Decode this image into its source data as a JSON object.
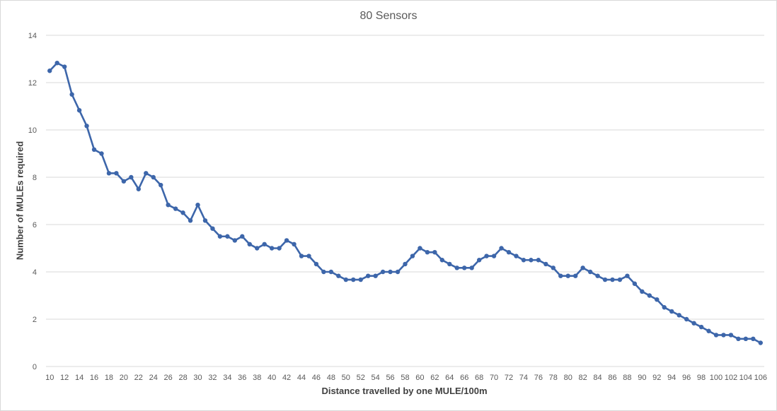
{
  "chart_data": {
    "type": "line",
    "title": "80 Sensors",
    "xlabel": "Distance travelled by one MULE/100m",
    "ylabel": "Number of MULEs required",
    "ylim": [
      0,
      14
    ],
    "yticks": [
      0,
      2,
      4,
      6,
      8,
      10,
      12,
      14
    ],
    "grid": true,
    "legend": "none",
    "colors": {
      "line": "#3d66aa",
      "grid": "#d9d9d9"
    },
    "x": [
      10,
      11,
      12,
      13,
      14,
      15,
      16,
      17,
      18,
      19,
      20,
      21,
      22,
      23,
      24,
      25,
      26,
      27,
      28,
      29,
      30,
      31,
      32,
      33,
      34,
      35,
      36,
      37,
      38,
      39,
      40,
      41,
      42,
      43,
      44,
      45,
      46,
      47,
      48,
      49,
      50,
      51,
      52,
      53,
      54,
      55,
      56,
      57,
      58,
      59,
      60,
      61,
      62,
      63,
      64,
      65,
      66,
      67,
      68,
      69,
      70,
      71,
      72,
      73,
      74,
      75,
      76,
      77,
      78,
      79,
      80,
      81,
      82,
      83,
      84,
      85,
      86,
      87,
      88,
      89,
      90,
      91,
      92,
      93,
      94,
      95,
      96,
      97,
      98,
      99,
      100,
      101,
      102,
      103,
      104,
      105,
      106
    ],
    "xtick_labels": [
      "10",
      "12",
      "14",
      "16",
      "18",
      "20",
      "22",
      "24",
      "26",
      "28",
      "30",
      "32",
      "34",
      "36",
      "38",
      "40",
      "42",
      "44",
      "46",
      "48",
      "50",
      "52",
      "54",
      "56",
      "58",
      "60",
      "62",
      "64",
      "66",
      "68",
      "70",
      "72",
      "74",
      "76",
      "78",
      "80",
      "82",
      "84",
      "86",
      "88",
      "90",
      "92",
      "94",
      "96",
      "98",
      "100",
      "102",
      "104",
      "106"
    ],
    "series": [
      {
        "values": [
          12.5,
          12.83,
          12.67,
          11.5,
          10.83,
          10.17,
          9.17,
          9.0,
          8.17,
          8.17,
          7.83,
          8.0,
          7.5,
          8.17,
          8.0,
          7.67,
          6.83,
          6.67,
          6.5,
          6.17,
          6.83,
          6.17,
          5.83,
          5.5,
          5.5,
          5.33,
          5.5,
          5.17,
          5.0,
          5.17,
          5.0,
          5.0,
          5.33,
          5.17,
          4.67,
          4.67,
          4.33,
          4.0,
          4.0,
          3.83,
          3.67,
          3.67,
          3.67,
          3.83,
          3.83,
          4.0,
          4.0,
          4.0,
          4.33,
          4.67,
          5.0,
          4.83,
          4.83,
          4.5,
          4.33,
          4.17,
          4.17,
          4.17,
          4.5,
          4.67,
          4.67,
          5.0,
          4.83,
          4.67,
          4.5,
          4.5,
          4.5,
          4.33,
          4.17,
          3.83,
          3.83,
          3.83,
          4.17,
          4.0,
          3.83,
          3.67,
          3.67,
          3.67,
          3.83,
          3.5,
          3.17,
          3.0,
          2.83,
          2.5,
          2.33,
          2.17,
          2.0,
          1.83,
          1.67,
          1.5,
          1.33,
          1.33,
          1.33,
          1.17,
          1.17,
          1.17,
          1.0
        ]
      }
    ]
  }
}
